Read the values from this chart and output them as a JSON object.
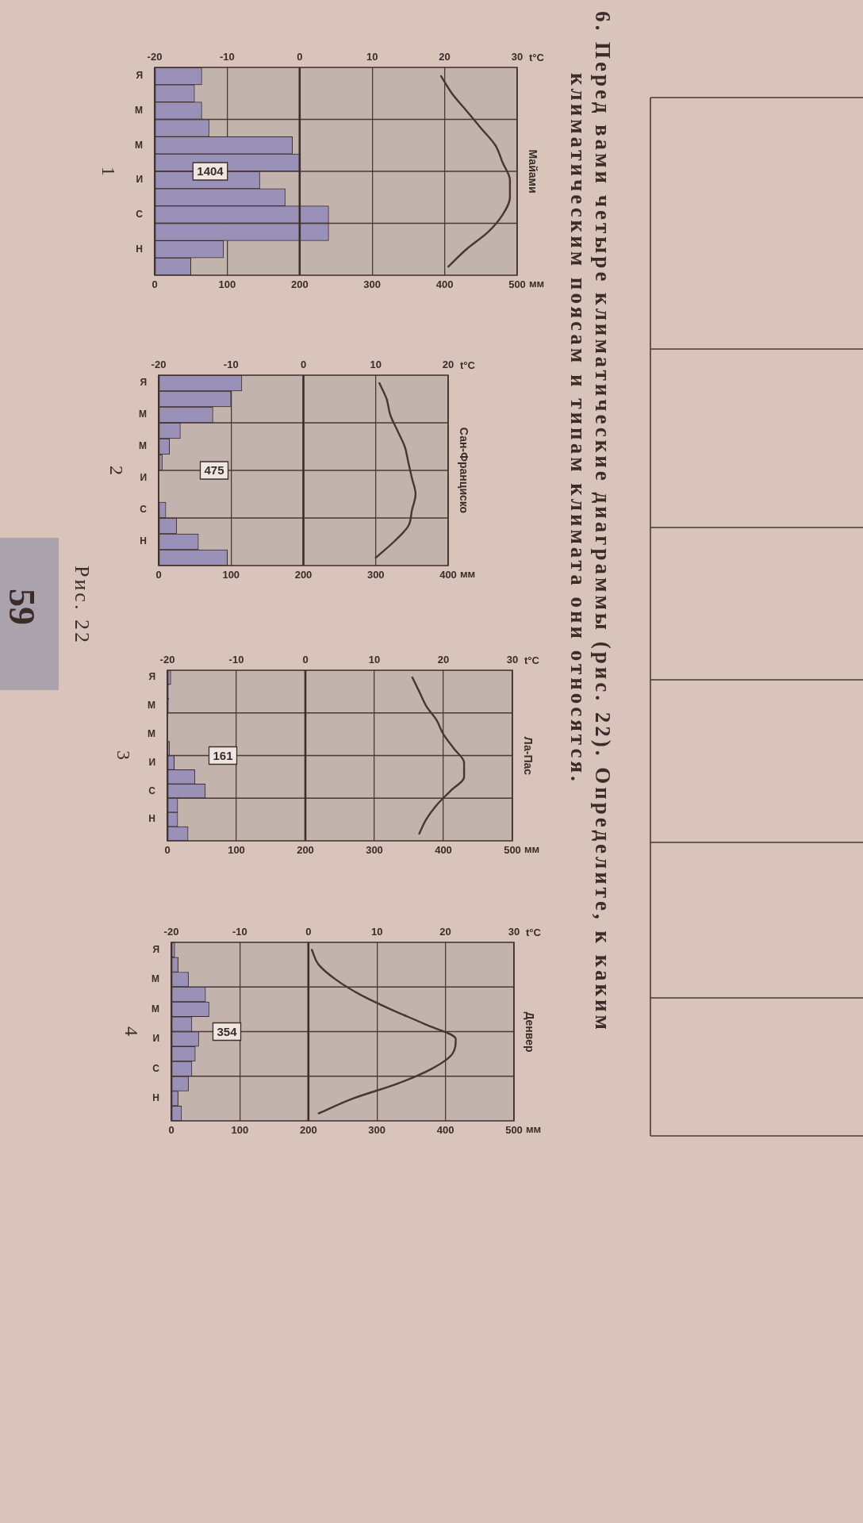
{
  "chart_data": [
    {
      "type": "bar",
      "orientation": "horizontal",
      "title": "Майами",
      "xlabel": "мм",
      "x2label": "t°C",
      "categories": [
        "Я",
        null,
        "М",
        null,
        "М",
        null,
        "И",
        null,
        "С",
        null,
        "Н",
        null
      ],
      "series": [
        {
          "type": "bar",
          "color": "#9a91b8",
          "values": [
            65,
            55,
            65,
            75,
            190,
            200,
            145,
            180,
            240,
            240,
            95,
            50
          ]
        },
        {
          "type": "line",
          "axis": "x2",
          "color": "#4a3531",
          "values": [
            19.5,
            21,
            23,
            25,
            27,
            28,
            29,
            29,
            28,
            26,
            23,
            20.5
          ]
        }
      ],
      "xlim": [
        0,
        500
      ],
      "xticks": [
        0,
        100,
        200,
        300,
        400,
        500
      ],
      "x2lim": [
        -20,
        30
      ],
      "x2ticks": [
        -20,
        -10,
        0,
        10,
        20,
        30
      ],
      "grid": true,
      "ref_lines": [
        {
          "axis": "x2",
          "value": 0
        }
      ],
      "annotations": [
        "1404",
        "1"
      ]
    },
    {
      "type": "bar",
      "orientation": "horizontal",
      "title": "Сан-Франциско",
      "xlabel": "мм",
      "x2label": "t°C",
      "categories": [
        "Я",
        null,
        "М",
        null,
        "М",
        null,
        "И",
        null,
        "С",
        null,
        "Н",
        null
      ],
      "series": [
        {
          "type": "bar",
          "color": "#9a91b8",
          "values": [
            115,
            100,
            75,
            30,
            15,
            5,
            0,
            0,
            10,
            25,
            55,
            95
          ]
        },
        {
          "type": "line",
          "axis": "x2",
          "color": "#4a3531",
          "values": [
            10.5,
            11.5,
            12,
            13,
            14,
            14.5,
            15,
            15.5,
            15,
            14.5,
            12.5,
            10
          ]
        }
      ],
      "xlim": [
        0,
        400
      ],
      "xticks": [
        0,
        100,
        200,
        300,
        400
      ],
      "x2lim": [
        -20,
        20
      ],
      "x2ticks": [
        -20,
        -10,
        0,
        10,
        20
      ],
      "grid": true,
      "ref_lines": [
        {
          "axis": "x2",
          "value": 0
        }
      ],
      "annotations": [
        "475",
        "2"
      ]
    },
    {
      "type": "bar",
      "orientation": "horizontal",
      "title": "Ла-Пас",
      "xlabel": "мм",
      "x2label": "t°C",
      "categories": [
        "Я",
        null,
        "М",
        null,
        "М",
        null,
        "И",
        null,
        "С",
        null,
        "Н",
        null
      ],
      "series": [
        {
          "type": "bar",
          "color": "#9a91b8",
          "values": [
            5,
            2,
            2,
            0,
            0,
            3,
            10,
            40,
            55,
            15,
            15,
            30
          ]
        },
        {
          "type": "line",
          "axis": "x2",
          "color": "#4a3531",
          "values": [
            15.5,
            16.5,
            17.5,
            19,
            20,
            21.5,
            23,
            23,
            21,
            19,
            17.5,
            16.5
          ]
        }
      ],
      "xlim": [
        0,
        500
      ],
      "xticks": [
        0,
        100,
        200,
        300,
        400,
        500
      ],
      "x2lim": [
        -20,
        30
      ],
      "x2ticks": [
        -20,
        -10,
        0,
        10,
        20,
        30
      ],
      "grid": true,
      "ref_lines": [
        {
          "axis": "x2",
          "value": 0
        }
      ],
      "annotations": [
        "161",
        "3"
      ]
    },
    {
      "type": "bar",
      "orientation": "horizontal",
      "title": "Денвер",
      "xlabel": "мм",
      "x2label": "t°C",
      "categories": [
        "Я",
        null,
        "М",
        null,
        "М",
        null,
        "И",
        null,
        "С",
        null,
        "Н",
        null
      ],
      "series": [
        {
          "type": "bar",
          "color": "#9a91b8",
          "values": [
            5,
            10,
            25,
            50,
            55,
            30,
            40,
            35,
            30,
            25,
            10,
            15
          ]
        },
        {
          "type": "line",
          "axis": "x2",
          "color": "#4a3531",
          "values": [
            0.5,
            1.5,
            4,
            7.5,
            12,
            17,
            21.5,
            21,
            18,
            13,
            6.5,
            1.5
          ]
        }
      ],
      "xlim": [
        0,
        500
      ],
      "xticks": [
        0,
        100,
        200,
        300,
        400,
        500
      ],
      "x2lim": [
        -20,
        30
      ],
      "x2ticks": [
        -20,
        -10,
        0,
        10,
        20,
        30
      ],
      "grid": true,
      "ref_lines": [
        {
          "axis": "x2",
          "value": 0
        }
      ],
      "annotations": [
        "354",
        "4"
      ]
    },
    {
      "type": "other",
      "title": "6. Перед вами четыре климатические диаграммы (рис. 22). Определите, к каким климатическим поясам и типам климата они относятся.",
      "annotations": [
        "Рис. 22",
        "59"
      ]
    }
  ]
}
